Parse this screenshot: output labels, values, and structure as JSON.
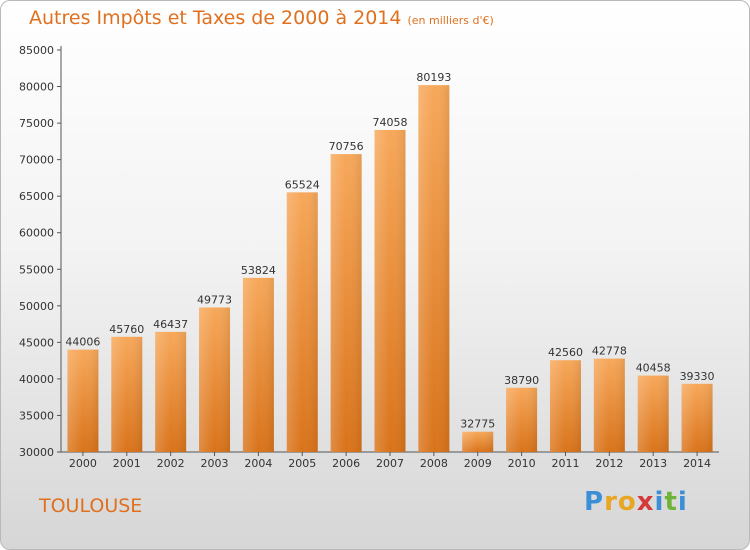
{
  "chart_data": {
    "type": "bar",
    "title": "Autres Impôts et Taxes de 2000 à 2014",
    "subtitle": "(en milliers d'€)",
    "categories": [
      "2000",
      "2001",
      "2002",
      "2003",
      "2004",
      "2005",
      "2006",
      "2007",
      "2008",
      "2009",
      "2010",
      "2011",
      "2012",
      "2013",
      "2014"
    ],
    "values": [
      44006,
      45760,
      46437,
      49773,
      53824,
      65524,
      70756,
      74058,
      80193,
      32775,
      38790,
      42560,
      42778,
      40458,
      39330
    ],
    "ylim": [
      30000,
      85000
    ],
    "yticks": [
      30000,
      35000,
      40000,
      45000,
      50000,
      55000,
      60000,
      65000,
      70000,
      75000,
      80000,
      85000
    ],
    "grid": false,
    "bar_color": "#f08c2e",
    "bar_color_light": "#f7a85a",
    "bar_color_dark": "#d9731a",
    "text_color": "#e0701e"
  },
  "footer": {
    "city": "TOULOUSE"
  },
  "logo": {
    "letters": [
      "P",
      "r",
      "o",
      "x",
      "i",
      "t",
      "i"
    ],
    "colors": [
      "#3a8fd6",
      "#e8a623",
      "#e8a623",
      "#d43a3a",
      "#3a8fd6",
      "#6fb43a",
      "#3a8fd6"
    ]
  }
}
